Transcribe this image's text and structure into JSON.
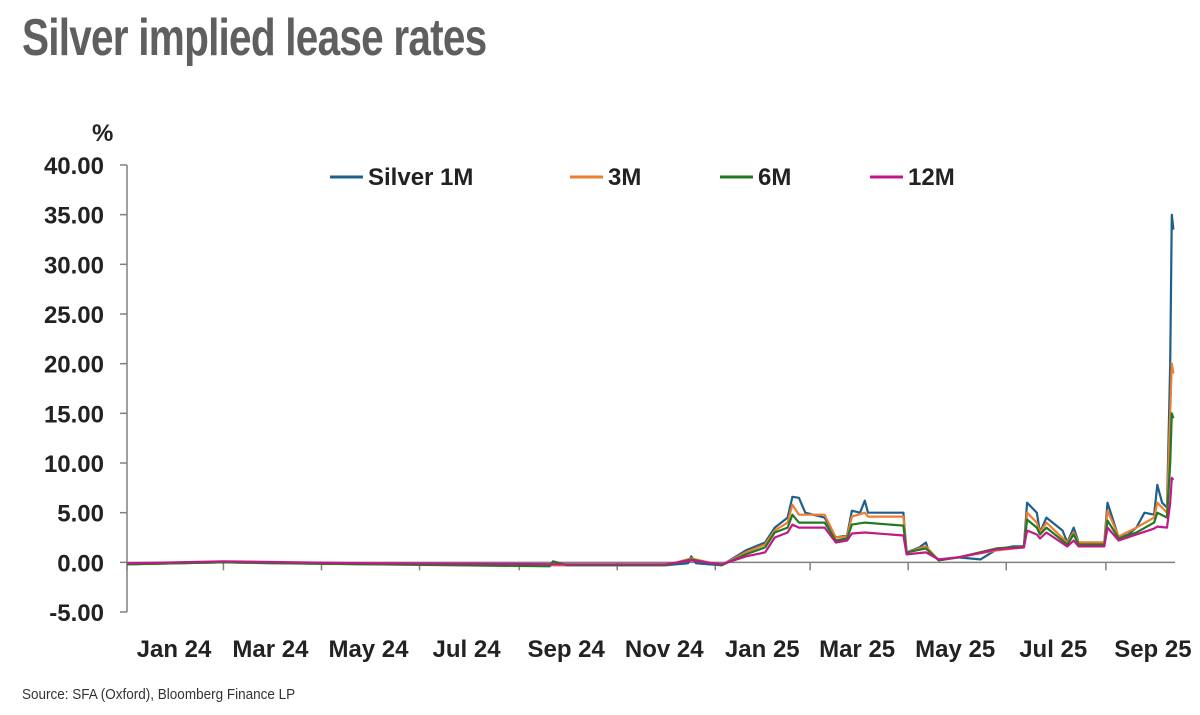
{
  "title": "Silver implied lease rates",
  "source": "Source: SFA (Oxford), Bloomberg Finance LP",
  "colors": {
    "silver_1m": "#1f5f8b",
    "m3": "#ed7d31",
    "m6": "#217a21",
    "m12": "#c2188a",
    "axis": "#808080"
  },
  "chart_data": {
    "type": "line",
    "ylabel": "%",
    "ylim": [
      -5,
      40
    ],
    "y_ticks": [
      "40.00",
      "35.00",
      "30.00",
      "25.00",
      "20.00",
      "15.00",
      "10.00",
      "5.00",
      "0.00",
      "-5.00"
    ],
    "y_tick_values": [
      40,
      35,
      30,
      25,
      20,
      15,
      10,
      5,
      0,
      -5
    ],
    "xlim": [
      "2024-01-01",
      "2025-10-14"
    ],
    "x_ticks": [
      "Jan 24",
      "Mar 24",
      "May 24",
      "Jul 24",
      "Sep 24",
      "Nov 24",
      "Jan 25",
      "Mar 25",
      "May 25",
      "Jul 25",
      "Sep 25"
    ],
    "x_tick_dates": [
      "2024-01-01",
      "2024-03-01",
      "2024-05-01",
      "2024-07-01",
      "2024-09-01",
      "2024-11-01",
      "2025-01-01",
      "2025-03-01",
      "2025-05-01",
      "2025-07-01",
      "2025-09-01"
    ],
    "legend": "top",
    "series": [
      {
        "name": "Silver 1M",
        "color_key": "silver_1m",
        "points": [
          [
            "2024-01-01",
            -0.2
          ],
          [
            "2024-02-01",
            -0.1
          ],
          [
            "2024-03-01",
            0.0
          ],
          [
            "2024-04-01",
            -0.1
          ],
          [
            "2024-06-01",
            -0.2
          ],
          [
            "2024-08-01",
            -0.2
          ],
          [
            "2024-10-01",
            -0.3
          ],
          [
            "2024-12-01",
            -0.3
          ],
          [
            "2024-12-15",
            -0.1
          ],
          [
            "2024-12-17",
            0.6
          ],
          [
            "2024-12-20",
            -0.1
          ],
          [
            "2025-01-05",
            -0.3
          ],
          [
            "2025-01-20",
            1.2
          ],
          [
            "2025-02-01",
            2.0
          ],
          [
            "2025-02-07",
            3.5
          ],
          [
            "2025-02-15",
            4.5
          ],
          [
            "2025-02-18",
            6.6
          ],
          [
            "2025-02-22",
            6.5
          ],
          [
            "2025-02-26",
            5.0
          ],
          [
            "2025-03-10",
            4.5
          ],
          [
            "2025-03-17",
            2.5
          ],
          [
            "2025-03-24",
            2.7
          ],
          [
            "2025-03-27",
            5.2
          ],
          [
            "2025-04-01",
            5.0
          ],
          [
            "2025-04-04",
            6.2
          ],
          [
            "2025-04-06",
            5.0
          ],
          [
            "2025-04-28",
            5.0
          ],
          [
            "2025-04-30",
            1.0
          ],
          [
            "2025-05-08",
            1.5
          ],
          [
            "2025-05-12",
            2.0
          ],
          [
            "2025-05-14",
            1.0
          ],
          [
            "2025-05-20",
            0.2
          ],
          [
            "2025-06-01",
            0.5
          ],
          [
            "2025-06-15",
            0.3
          ],
          [
            "2025-06-25",
            1.3
          ],
          [
            "2025-07-05",
            1.6
          ],
          [
            "2025-07-12",
            1.6
          ],
          [
            "2025-07-14",
            6.0
          ],
          [
            "2025-07-20",
            5.0
          ],
          [
            "2025-07-22",
            3.0
          ],
          [
            "2025-07-26",
            4.5
          ],
          [
            "2025-08-05",
            3.2
          ],
          [
            "2025-08-08",
            2.0
          ],
          [
            "2025-08-12",
            3.5
          ],
          [
            "2025-08-15",
            2.0
          ],
          [
            "2025-08-31",
            2.0
          ],
          [
            "2025-09-02",
            6.0
          ],
          [
            "2025-09-05",
            4.5
          ],
          [
            "2025-09-09",
            2.5
          ],
          [
            "2025-09-15",
            2.8
          ],
          [
            "2025-09-20",
            3.5
          ],
          [
            "2025-09-25",
            5.0
          ],
          [
            "2025-10-01",
            4.8
          ],
          [
            "2025-10-03",
            7.8
          ],
          [
            "2025-10-06",
            6.0
          ],
          [
            "2025-10-09",
            5.5
          ],
          [
            "2025-10-11",
            20.0
          ],
          [
            "2025-10-12",
            35.0
          ],
          [
            "2025-10-13",
            33.5
          ]
        ]
      },
      {
        "name": "3M",
        "color_key": "m3",
        "points": [
          [
            "2024-01-01",
            -0.2
          ],
          [
            "2024-03-01",
            0.0
          ],
          [
            "2024-06-01",
            -0.2
          ],
          [
            "2024-10-01",
            -0.3
          ],
          [
            "2024-12-01",
            -0.3
          ],
          [
            "2024-12-17",
            0.4
          ],
          [
            "2025-01-05",
            -0.3
          ],
          [
            "2025-01-20",
            1.0
          ],
          [
            "2025-02-01",
            1.8
          ],
          [
            "2025-02-07",
            3.2
          ],
          [
            "2025-02-15",
            4.0
          ],
          [
            "2025-02-18",
            5.8
          ],
          [
            "2025-02-22",
            4.8
          ],
          [
            "2025-03-10",
            4.8
          ],
          [
            "2025-03-17",
            2.5
          ],
          [
            "2025-03-24",
            2.6
          ],
          [
            "2025-03-27",
            4.6
          ],
          [
            "2025-04-04",
            5.0
          ],
          [
            "2025-04-06",
            4.6
          ],
          [
            "2025-04-28",
            4.6
          ],
          [
            "2025-04-30",
            1.0
          ],
          [
            "2025-05-12",
            1.6
          ],
          [
            "2025-05-20",
            0.2
          ],
          [
            "2025-06-01",
            0.5
          ],
          [
            "2025-06-25",
            1.2
          ],
          [
            "2025-07-12",
            1.5
          ],
          [
            "2025-07-14",
            5.0
          ],
          [
            "2025-07-20",
            4.0
          ],
          [
            "2025-07-22",
            3.0
          ],
          [
            "2025-07-26",
            4.0
          ],
          [
            "2025-08-08",
            2.0
          ],
          [
            "2025-08-12",
            3.0
          ],
          [
            "2025-08-15",
            2.0
          ],
          [
            "2025-08-31",
            2.0
          ],
          [
            "2025-09-02",
            5.2
          ],
          [
            "2025-09-09",
            2.6
          ],
          [
            "2025-09-20",
            3.5
          ],
          [
            "2025-10-01",
            4.5
          ],
          [
            "2025-10-03",
            6.0
          ],
          [
            "2025-10-09",
            5.0
          ],
          [
            "2025-10-11",
            15.0
          ],
          [
            "2025-10-12",
            20.0
          ],
          [
            "2025-10-13",
            19.0
          ]
        ]
      },
      {
        "name": "6M",
        "color_key": "m6",
        "points": [
          [
            "2024-01-01",
            -0.2
          ],
          [
            "2024-03-01",
            0.0
          ],
          [
            "2024-06-01",
            -0.2
          ],
          [
            "2024-09-20",
            -0.4
          ],
          [
            "2024-09-22",
            0.1
          ],
          [
            "2024-10-01",
            -0.3
          ],
          [
            "2024-12-01",
            -0.3
          ],
          [
            "2024-12-17",
            0.3
          ],
          [
            "2025-01-05",
            -0.3
          ],
          [
            "2025-01-20",
            0.8
          ],
          [
            "2025-02-01",
            1.5
          ],
          [
            "2025-02-07",
            3.0
          ],
          [
            "2025-02-15",
            3.5
          ],
          [
            "2025-02-18",
            4.8
          ],
          [
            "2025-02-22",
            4.0
          ],
          [
            "2025-03-10",
            4.0
          ],
          [
            "2025-03-17",
            2.2
          ],
          [
            "2025-03-24",
            2.4
          ],
          [
            "2025-03-27",
            3.8
          ],
          [
            "2025-04-04",
            4.0
          ],
          [
            "2025-04-28",
            3.7
          ],
          [
            "2025-04-30",
            1.0
          ],
          [
            "2025-05-12",
            1.4
          ],
          [
            "2025-05-20",
            0.2
          ],
          [
            "2025-06-01",
            0.5
          ],
          [
            "2025-06-25",
            1.4
          ],
          [
            "2025-07-12",
            1.6
          ],
          [
            "2025-07-14",
            4.3
          ],
          [
            "2025-07-20",
            3.5
          ],
          [
            "2025-07-22",
            2.8
          ],
          [
            "2025-07-26",
            3.5
          ],
          [
            "2025-08-08",
            1.8
          ],
          [
            "2025-08-12",
            2.8
          ],
          [
            "2025-08-15",
            1.8
          ],
          [
            "2025-08-31",
            1.8
          ],
          [
            "2025-09-02",
            4.2
          ],
          [
            "2025-09-09",
            2.4
          ],
          [
            "2025-09-20",
            3.0
          ],
          [
            "2025-10-01",
            4.0
          ],
          [
            "2025-10-03",
            5.0
          ],
          [
            "2025-10-09",
            4.5
          ],
          [
            "2025-10-11",
            10.0
          ],
          [
            "2025-10-12",
            15.0
          ],
          [
            "2025-10-13",
            14.5
          ]
        ]
      },
      {
        "name": "12M",
        "color_key": "m12",
        "points": [
          [
            "2024-01-01",
            -0.1
          ],
          [
            "2024-03-01",
            0.1
          ],
          [
            "2024-06-01",
            -0.1
          ],
          [
            "2024-10-01",
            -0.2
          ],
          [
            "2024-12-01",
            -0.2
          ],
          [
            "2024-12-17",
            0.2
          ],
          [
            "2025-01-05",
            -0.2
          ],
          [
            "2025-01-20",
            0.6
          ],
          [
            "2025-02-01",
            1.0
          ],
          [
            "2025-02-07",
            2.5
          ],
          [
            "2025-02-15",
            3.0
          ],
          [
            "2025-02-18",
            3.8
          ],
          [
            "2025-02-22",
            3.5
          ],
          [
            "2025-03-10",
            3.5
          ],
          [
            "2025-03-17",
            2.0
          ],
          [
            "2025-03-24",
            2.2
          ],
          [
            "2025-03-27",
            2.9
          ],
          [
            "2025-04-04",
            3.0
          ],
          [
            "2025-04-28",
            2.7
          ],
          [
            "2025-04-30",
            0.8
          ],
          [
            "2025-05-12",
            1.0
          ],
          [
            "2025-05-20",
            0.3
          ],
          [
            "2025-06-01",
            0.5
          ],
          [
            "2025-06-25",
            1.3
          ],
          [
            "2025-07-12",
            1.5
          ],
          [
            "2025-07-14",
            3.2
          ],
          [
            "2025-07-20",
            2.8
          ],
          [
            "2025-07-22",
            2.4
          ],
          [
            "2025-07-26",
            3.0
          ],
          [
            "2025-08-08",
            1.6
          ],
          [
            "2025-08-12",
            2.2
          ],
          [
            "2025-08-15",
            1.6
          ],
          [
            "2025-08-31",
            1.6
          ],
          [
            "2025-09-02",
            3.5
          ],
          [
            "2025-09-09",
            2.2
          ],
          [
            "2025-09-20",
            2.8
          ],
          [
            "2025-10-01",
            3.4
          ],
          [
            "2025-10-03",
            3.6
          ],
          [
            "2025-10-09",
            3.5
          ],
          [
            "2025-10-11",
            6.0
          ],
          [
            "2025-10-12",
            8.5
          ],
          [
            "2025-10-13",
            8.3
          ]
        ]
      }
    ]
  }
}
